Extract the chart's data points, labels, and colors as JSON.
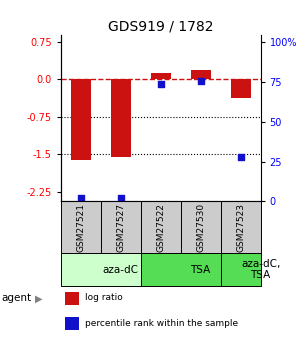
{
  "title": "GDS919 / 1782",
  "samples": [
    "GSM27521",
    "GSM27527",
    "GSM27522",
    "GSM27530",
    "GSM27523"
  ],
  "log_ratios": [
    -1.62,
    -1.55,
    0.13,
    0.19,
    -0.38
  ],
  "percentile_ranks": [
    2.0,
    2.5,
    74.0,
    76.0,
    28.0
  ],
  "agents": [
    {
      "label": "aza-dC",
      "start": 0,
      "end": 2,
      "color": "#ccffcc"
    },
    {
      "label": "TSA",
      "start": 2,
      "end": 4,
      "color": "#55dd55"
    },
    {
      "label": "aza-dC,\nTSA",
      "start": 4,
      "end": 5,
      "color": "#55dd55"
    }
  ],
  "ylim_left": [
    -2.45,
    0.9
  ],
  "ylim_right": [
    0,
    105
  ],
  "yticks_left": [
    0.75,
    0.0,
    -0.75,
    -1.5,
    -2.25
  ],
  "yticks_right": [
    100,
    75,
    50,
    25,
    0
  ],
  "ytick_labels_right": [
    "100%",
    "75",
    "50",
    "25",
    "0"
  ],
  "hlines": [
    -0.75,
    -1.5
  ],
  "dashed_line_y": 0.0,
  "bar_color_red": "#cc1111",
  "bar_color_blue": "#1111cc",
  "bar_width": 0.5,
  "dot_size": 22,
  "sample_box_color": "#cccccc",
  "legend_red": "log ratio",
  "legend_blue": "percentile rank within the sample",
  "title_fontsize": 10,
  "tick_fontsize": 7,
  "sample_fontsize": 6.5,
  "agent_fontsize": 7.5,
  "legend_fontsize": 6.5
}
